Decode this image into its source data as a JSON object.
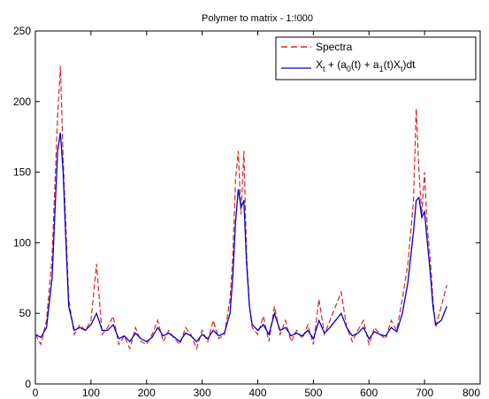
{
  "chart_data": {
    "type": "line",
    "title": "Polymer to matrix - 1:!000",
    "xlabel": "",
    "ylabel": "",
    "xlim": [
      0,
      800
    ],
    "ylim": [
      0,
      250
    ],
    "xticks": [
      "0",
      "100",
      "200",
      "300",
      "400",
      "500",
      "600",
      "700",
      "800"
    ],
    "yticks": [
      "0",
      "50",
      "100",
      "150",
      "200",
      "250"
    ],
    "grid": false,
    "legend_position": "top-right",
    "legend": [
      {
        "label": "Spectra",
        "color": "#d62728",
        "style": "dashed"
      },
      {
        "label_parts": [
          "X",
          "t",
          " + (a",
          "0",
          "(t) + a",
          "1",
          "(t)X",
          "t",
          ")dt"
        ],
        "color": "#0000cc",
        "style": "solid"
      }
    ],
    "series": [
      {
        "color": "#d62728",
        "style": "dashed",
        "x": [
          0,
          10,
          20,
          30,
          35,
          40,
          45,
          50,
          55,
          60,
          70,
          80,
          90,
          100,
          110,
          120,
          130,
          140,
          150,
          160,
          170,
          180,
          190,
          200,
          210,
          220,
          230,
          240,
          250,
          260,
          270,
          280,
          290,
          300,
          310,
          320,
          330,
          340,
          350,
          355,
          360,
          365,
          370,
          375,
          380,
          385,
          390,
          400,
          410,
          420,
          430,
          440,
          450,
          460,
          470,
          480,
          490,
          500,
          510,
          520,
          530,
          540,
          550,
          560,
          570,
          580,
          590,
          600,
          610,
          620,
          630,
          640,
          650,
          660,
          670,
          680,
          685,
          690,
          695,
          700,
          705,
          710,
          715,
          720,
          730,
          740
        ],
        "y": [
          35,
          28,
          45,
          90,
          140,
          190,
          225,
          160,
          110,
          60,
          35,
          42,
          38,
          45,
          85,
          35,
          40,
          48,
          28,
          34,
          25,
          40,
          30,
          28,
          35,
          45,
          30,
          38,
          32,
          28,
          40,
          35,
          25,
          38,
          30,
          45,
          32,
          35,
          60,
          90,
          145,
          165,
          120,
          165,
          90,
          55,
          40,
          35,
          48,
          30,
          55,
          35,
          45,
          30,
          38,
          32,
          42,
          28,
          60,
          35,
          45,
          55,
          65,
          40,
          30,
          38,
          45,
          28,
          40,
          35,
          32,
          45,
          38,
          60,
          85,
          130,
          195,
          150,
          120,
          150,
          110,
          90,
          60,
          40,
          55,
          70
        ]
      },
      {
        "color": "#0000cc",
        "style": "solid",
        "x": [
          0,
          10,
          20,
          30,
          35,
          40,
          45,
          50,
          55,
          60,
          70,
          80,
          90,
          100,
          110,
          120,
          130,
          140,
          150,
          160,
          170,
          180,
          190,
          200,
          210,
          220,
          230,
          240,
          250,
          260,
          270,
          280,
          290,
          300,
          310,
          320,
          330,
          340,
          350,
          355,
          360,
          365,
          370,
          375,
          380,
          385,
          390,
          400,
          410,
          420,
          430,
          440,
          450,
          460,
          470,
          480,
          490,
          500,
          510,
          520,
          530,
          540,
          550,
          560,
          570,
          580,
          590,
          600,
          610,
          620,
          630,
          640,
          650,
          660,
          670,
          680,
          685,
          690,
          695,
          700,
          705,
          710,
          715,
          720,
          730,
          740
        ],
        "y": [
          35,
          33,
          40,
          75,
          120,
          165,
          178,
          150,
          100,
          55,
          38,
          40,
          38,
          42,
          50,
          38,
          38,
          42,
          32,
          34,
          30,
          36,
          32,
          30,
          33,
          40,
          34,
          36,
          33,
          30,
          36,
          34,
          30,
          35,
          32,
          38,
          34,
          36,
          50,
          75,
          115,
          138,
          125,
          130,
          85,
          55,
          42,
          38,
          42,
          35,
          50,
          38,
          40,
          34,
          36,
          34,
          38,
          32,
          45,
          36,
          40,
          45,
          50,
          40,
          34,
          36,
          40,
          32,
          37,
          35,
          34,
          40,
          37,
          50,
          72,
          108,
          130,
          132,
          118,
          122,
          100,
          80,
          55,
          42,
          45,
          55
        ]
      }
    ]
  }
}
